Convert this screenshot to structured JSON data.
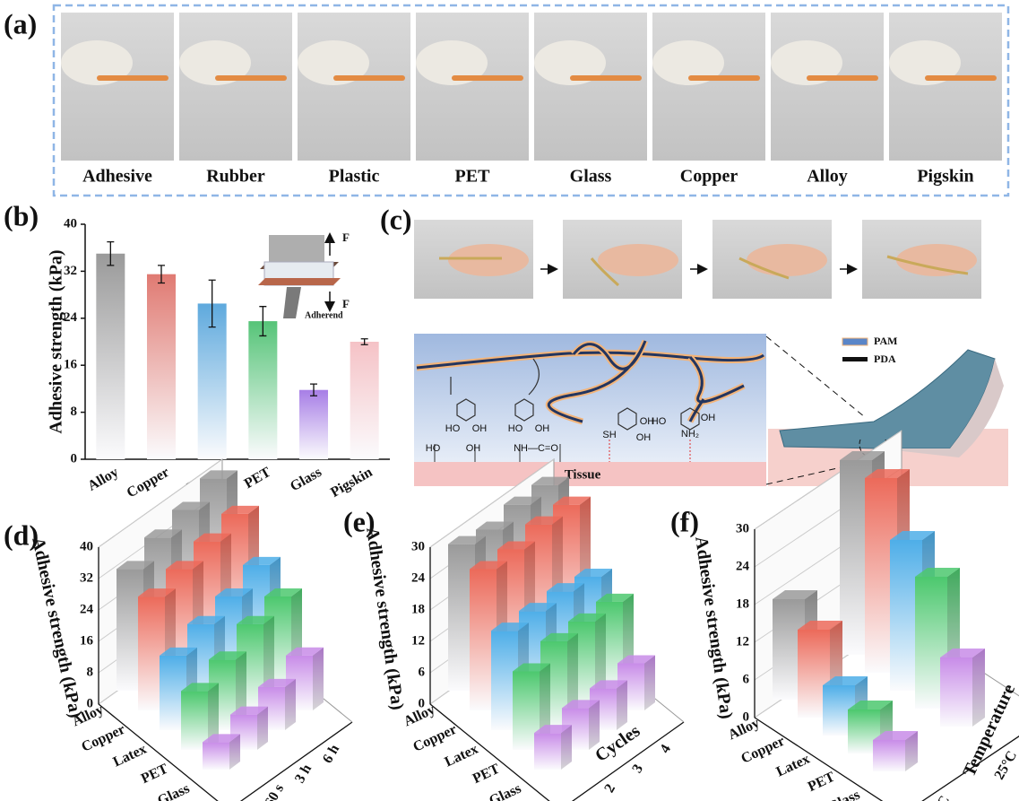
{
  "panel_labels": [
    "(a)",
    "(b)",
    "(c)",
    "(d)",
    "(e)",
    "(f)"
  ],
  "panel_a": {
    "labels": [
      "Adhesive",
      "Rubber",
      "Plastic",
      "PET",
      "Glass",
      "Copper",
      "Alloy",
      "Pigskin"
    ]
  },
  "panel_c": {
    "legend": [
      "PAM",
      "PDA"
    ],
    "tissue": "Tissue",
    "chem_labels": [
      "HO",
      "OH",
      "HO",
      "OH",
      "HO",
      "OH",
      "NH—C=O",
      "OH",
      "OH",
      "SH",
      "HO",
      "OH",
      "NH₂"
    ]
  },
  "chart_data": [
    {
      "type": "bar",
      "y_label": "Adhesive strength (kPa)",
      "categories": [
        "Alloy",
        "Copper",
        "Latex",
        "PET",
        "Glass",
        "Pigskin"
      ],
      "values": [
        35,
        31.5,
        26.5,
        23.5,
        11.8,
        20
      ],
      "errors": [
        2,
        1.5,
        4,
        2.5,
        1,
        0.5
      ],
      "colors": [
        "#9a9a9a",
        "#e07a72",
        "#5ea9dd",
        "#56c478",
        "#a77ee6",
        "#f5c2c6"
      ],
      "ylim": [
        0,
        40
      ],
      "yticks": [
        0,
        8,
        16,
        24,
        32,
        40
      ],
      "annotations": [
        "F",
        "F",
        "Adherend"
      ]
    },
    {
      "type": "bar3d",
      "y_label": "Adhesive strength (kPa)",
      "categories": [
        "Alloy",
        "Copper",
        "Latex",
        "PET",
        "Glass"
      ],
      "colors": [
        "#9a9a9a",
        "#ec6a5a",
        "#4eaee8",
        "#4cc86e",
        "#c88ce8"
      ],
      "series": [
        {
          "name": "3 s",
          "values": [
            31,
            29,
            19,
            15,
            7
          ]
        },
        {
          "name": "60 s",
          "values": [
            34,
            31,
            22,
            18,
            9
          ]
        },
        {
          "name": "3 h",
          "values": [
            36,
            33,
            24,
            22,
            11
          ]
        },
        {
          "name": "6 h",
          "values": [
            39,
            35,
            27,
            24,
            14
          ]
        }
      ],
      "ylim": [
        0,
        40
      ],
      "yticks": [
        0,
        8,
        16,
        24,
        32,
        40
      ]
    },
    {
      "type": "bar3d",
      "y_label": "Adhesive strength (kPa)",
      "x_label": "Cycles",
      "categories": [
        "Alloy",
        "Copper",
        "Latex",
        "PET",
        "Glass"
      ],
      "colors": [
        "#9a9a9a",
        "#ec6a5a",
        "#4eaee8",
        "#4cc86e",
        "#c88ce8"
      ],
      "series": [
        {
          "name": "1",
          "values": [
            28,
            27,
            19,
            15,
            7
          ]
        },
        {
          "name": "2",
          "values": [
            27,
            27,
            19,
            17,
            8
          ]
        },
        {
          "name": "3",
          "values": [
            28,
            28,
            19,
            17,
            8
          ]
        },
        {
          "name": "4",
          "values": [
            28,
            28,
            18,
            17,
            9
          ]
        }
      ],
      "ylim": [
        0,
        30
      ],
      "yticks": [
        0,
        6,
        12,
        18,
        24,
        30
      ]
    },
    {
      "type": "bar3d",
      "y_label": "Adhesive strength (kPa)",
      "x_label": "Temperature",
      "categories": [
        "Alloy",
        "Copper",
        "Latex",
        "PET",
        "Glass"
      ],
      "colors": [
        "#9a9a9a",
        "#ec6a5a",
        "#4eaee8",
        "#4cc86e",
        "#c88ce8"
      ],
      "series": [
        {
          "name": "-20°C",
          "values": [
            16,
            14,
            8,
            7,
            5
          ]
        },
        {
          "name": "25°C",
          "values": [
            31,
            31,
            24,
            21,
            11
          ]
        }
      ],
      "ylim": [
        0,
        30
      ],
      "yticks": [
        0,
        6,
        12,
        18,
        24,
        30
      ]
    }
  ]
}
